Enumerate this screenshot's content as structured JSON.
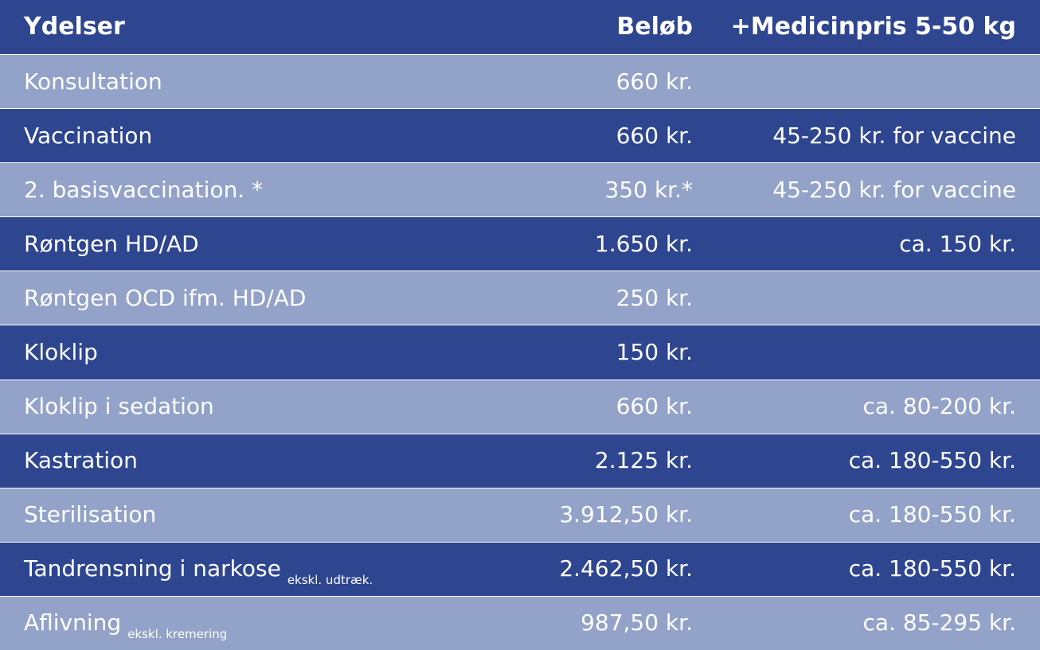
{
  "header": {
    "service": "Ydelser",
    "amount": "Beløb",
    "medicine": "+Medicinpris 5-50 kg"
  },
  "rows": [
    {
      "service": "Konsultation",
      "note": "",
      "amount": "660 kr.",
      "medicine": ""
    },
    {
      "service": "Vaccination",
      "note": "",
      "amount": "660 kr.",
      "medicine": "45-250 kr. for vaccine"
    },
    {
      "service": "2. basisvaccination. *",
      "note": "",
      "amount": "350 kr.*",
      "medicine": "45-250 kr. for vaccine"
    },
    {
      "service": "Røntgen HD/AD",
      "note": "",
      "amount": "1.650 kr.",
      "medicine": "ca. 150 kr."
    },
    {
      "service": "Røntgen OCD ifm. HD/AD",
      "note": "",
      "amount": "250 kr.",
      "medicine": ""
    },
    {
      "service": "Kloklip",
      "note": "",
      "amount": "150 kr.",
      "medicine": ""
    },
    {
      "service": "Kloklip i sedation",
      "note": "",
      "amount": "660 kr.",
      "medicine": "ca. 80-200 kr."
    },
    {
      "service": "Kastration",
      "note": "",
      "amount": "2.125 kr.",
      "medicine": "ca. 180-550 kr."
    },
    {
      "service": "Sterilisation",
      "note": "",
      "amount": "3.912,50 kr.",
      "medicine": "ca. 180-550 kr."
    },
    {
      "service": "Tandrensning i narkose",
      "note": "ekskl. udtræk.",
      "amount": "2.462,50 kr.",
      "medicine": "ca. 180-550 kr."
    },
    {
      "service": "Aflivning",
      "note": "ekskl. kremering",
      "amount": "987,50 kr.",
      "medicine": "ca. 85-295 kr."
    }
  ],
  "colors": {
    "dark_row": "#2e4590",
    "light_row": "#92a2c8",
    "text": "#ffffff"
  }
}
